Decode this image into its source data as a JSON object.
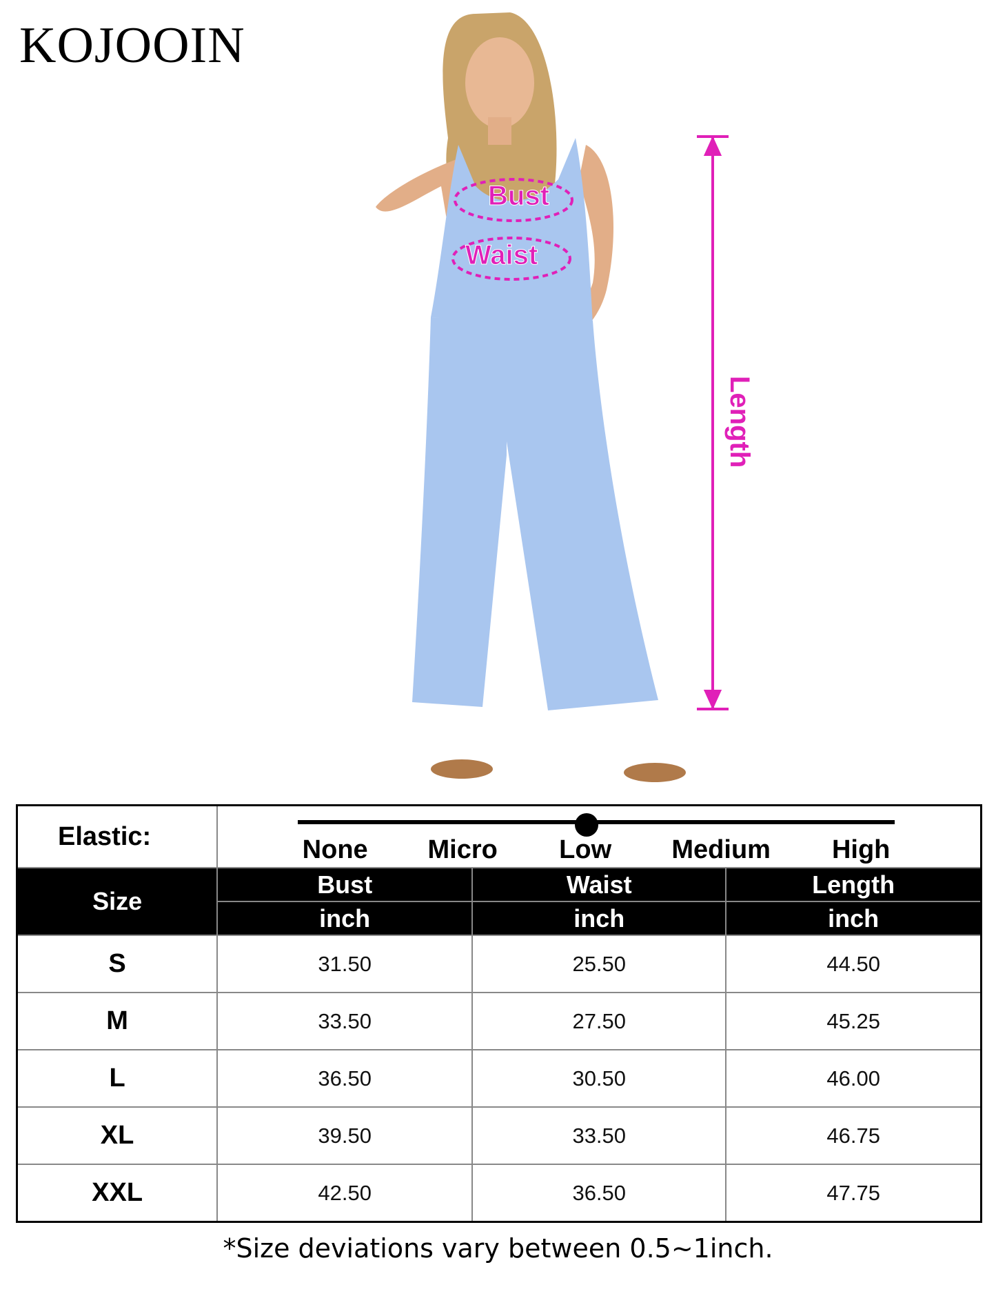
{
  "brand": "KOJOOIN",
  "measure_labels": {
    "bust": "Bust",
    "waist": "Waist",
    "length": "Length"
  },
  "colors": {
    "accent": "#e020b8",
    "garment": "#a9c6ef"
  },
  "elastic": {
    "label": "Elastic:",
    "levels": [
      "None",
      "Micro",
      "Low",
      "Medium",
      "High"
    ],
    "selected": "Low"
  },
  "table": {
    "size_header": "Size",
    "columns": [
      {
        "name": "Bust",
        "unit": "inch"
      },
      {
        "name": "Waist",
        "unit": "inch"
      },
      {
        "name": "Length",
        "unit": "inch"
      }
    ],
    "rows": [
      {
        "size": "S",
        "values": [
          "31.50",
          "25.50",
          "44.50"
        ]
      },
      {
        "size": "M",
        "values": [
          "33.50",
          "27.50",
          "45.25"
        ]
      },
      {
        "size": "L",
        "values": [
          "36.50",
          "30.50",
          "46.00"
        ]
      },
      {
        "size": "XL",
        "values": [
          "39.50",
          "33.50",
          "46.75"
        ]
      },
      {
        "size": "XXL",
        "values": [
          "42.50",
          "36.50",
          "47.75"
        ]
      }
    ]
  },
  "note": "*Size deviations vary between 0.5~1inch."
}
